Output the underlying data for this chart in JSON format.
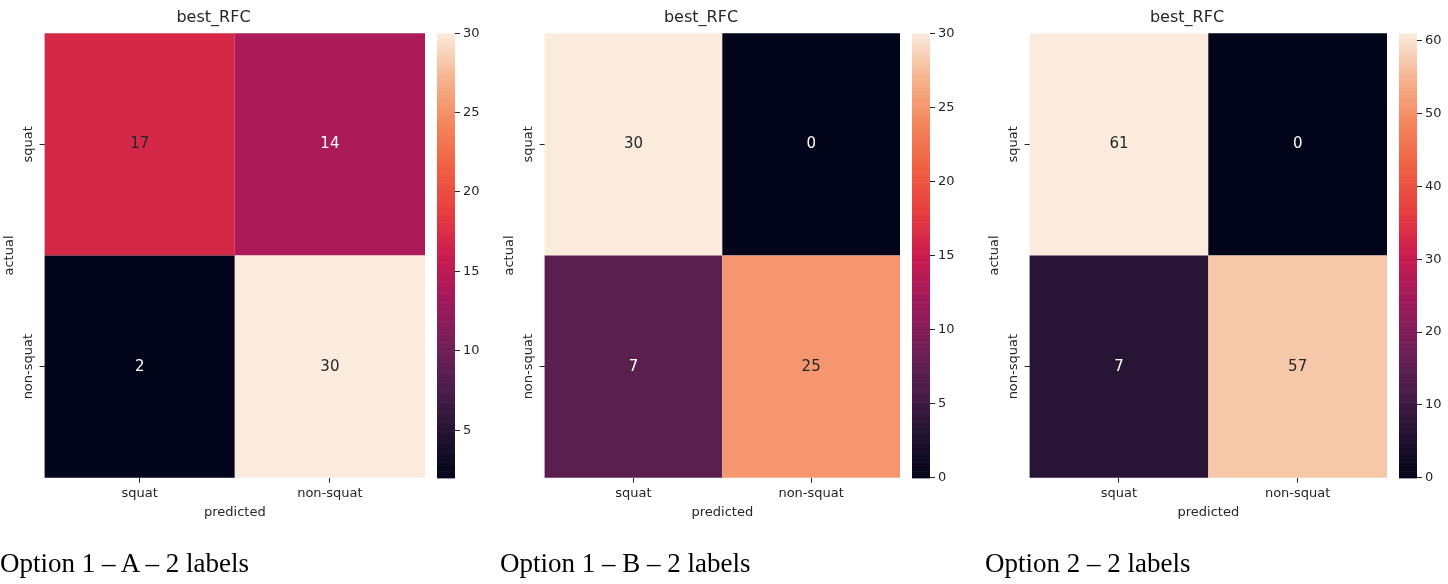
{
  "chart_data": [
    {
      "type": "heatmap",
      "title": "best_RFC",
      "xlabel": "predicted",
      "ylabel": "actual",
      "categories": [
        "squat",
        "non-squat"
      ],
      "y_categories": [
        "squat",
        "non-squat"
      ],
      "cells": [
        [
          17,
          14
        ],
        [
          2,
          30
        ]
      ],
      "data_labels": true,
      "clim": [
        2,
        30
      ],
      "cticks": [
        5,
        10,
        15,
        20,
        25,
        30
      ],
      "annotations": [
        "Option 1 – A – 2 labels"
      ]
    },
    {
      "type": "heatmap",
      "title": "best_RFC",
      "xlabel": "predicted",
      "ylabel": "actual",
      "categories": [
        "squat",
        "non-squat"
      ],
      "y_categories": [
        "squat",
        "non-squat"
      ],
      "cells": [
        [
          30,
          0
        ],
        [
          7,
          25
        ]
      ],
      "data_labels": true,
      "clim": [
        0,
        30
      ],
      "cticks": [
        0,
        5,
        10,
        15,
        20,
        25,
        30
      ],
      "annotations": [
        "Option 1 – B – 2 labels"
      ]
    },
    {
      "type": "heatmap",
      "title": "best_RFC",
      "xlabel": "predicted",
      "ylabel": "actual",
      "categories": [
        "squat",
        "non-squat"
      ],
      "y_categories": [
        "squat",
        "non-squat"
      ],
      "cells": [
        [
          61,
          0
        ],
        [
          7,
          57
        ]
      ],
      "data_labels": true,
      "clim": [
        0,
        61
      ],
      "cticks": [
        0,
        10,
        20,
        30,
        40,
        50,
        60
      ],
      "annotations": [
        "Option 2 – 2 labels"
      ]
    }
  ]
}
